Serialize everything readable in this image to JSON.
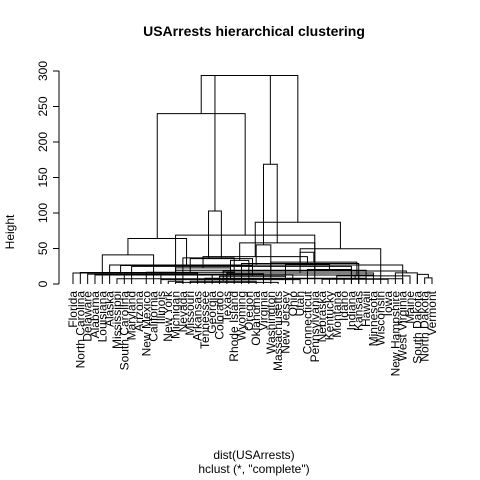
{
  "chart_data": {
    "type": "dendrogram",
    "title": "USArrests hierarchical clustering",
    "ylabel": "Height",
    "xlabel": "dist(USArrests)",
    "sublabel": "hclust (*, \"complete\")",
    "ylim": [
      0,
      300
    ],
    "yticks": [
      0,
      50,
      100,
      150,
      200,
      250,
      300
    ],
    "labels": [
      "Florida",
      "North Carolina",
      "Delaware",
      "Alabama",
      "Louisiana",
      "Alaska",
      "Mississippi",
      "South Carolina",
      "Maryland",
      "Arizona",
      "New Mexico",
      "California",
      "Illinois",
      "New York",
      "Michigan",
      "Nevada",
      "Missouri",
      "Arkansas",
      "Tennessee",
      "Georgia",
      "Colorado",
      "Texas",
      "Rhode Island",
      "Wyoming",
      "Oregon",
      "Oklahoma",
      "Virginia",
      "Washington",
      "Massachusetts",
      "New Jersey",
      "Ohio",
      "Utah",
      "Connecticut",
      "Pennsylvania",
      "Nebraska",
      "Kentucky",
      "Montana",
      "Idaho",
      "Indiana",
      "Kansas",
      "Hawaii",
      "Minnesota",
      "Wisconsin",
      "Iowa",
      "New Hampshire",
      "West Virginia",
      "Maine",
      "South Dakota",
      "North Dakota",
      "Vermont"
    ],
    "merges": [
      [
        -15,
        -29,
        2.29
      ],
      [
        -17,
        -26,
        3.83
      ],
      [
        -14,
        -16,
        3.93
      ],
      [
        -13,
        -32,
        6.24
      ],
      [
        -35,
        -44,
        6.64
      ],
      [
        -36,
        -46,
        7.36
      ],
      [
        -7,
        -38,
        7.36
      ],
      [
        -19,
        -41,
        8.03
      ],
      [
        -49,
        -50,
        8.54
      ],
      [
        -21,
        -30,
        10.86
      ],
      [
        -37,
        -47,
        11.46
      ],
      [
        -40,
        5,
        12.42
      ],
      [
        -4,
        -42,
        12.61
      ],
      [
        -20,
        -31,
        13.04
      ],
      [
        -8,
        -22,
        13.3
      ],
      [
        -48,
        9,
        13.49
      ],
      [
        -3,
        -27,
        13.89
      ],
      [
        -1,
        -18,
        15.41
      ],
      [
        1,
        11,
        15.45
      ],
      [
        -45,
        -48,
        15.63
      ],
      [
        -2,
        -13,
        16.24
      ],
      [
        -11,
        -23,
        16.57
      ],
      [
        2,
        20,
        18.32
      ],
      [
        6,
        15,
        19.44
      ],
      [
        -33,
        -39,
        20.36
      ],
      [
        3,
        4,
        22.73
      ],
      [
        -9,
        -39,
        24.89
      ],
      [
        14,
        21,
        26.07
      ],
      [
        -6,
        -46,
        26.7
      ],
      [
        8,
        25,
        28.07
      ],
      [
        -24,
        -40,
        28.95
      ],
      [
        12,
        24,
        30.82
      ],
      [
        7,
        -25,
        33.21
      ],
      [
        10,
        22,
        35.8
      ],
      [
        -16,
        13,
        36.73
      ],
      [
        26,
        30,
        38.53
      ],
      [
        -5,
        -12,
        40.95
      ],
      [
        31,
        32,
        44.79
      ],
      [
        -43,
        19,
        49.67
      ],
      [
        29,
        -28,
        55.15
      ],
      [
        33,
        -34,
        57.99
      ],
      [
        28,
        37,
        64.12
      ],
      [
        17,
        23,
        68.88
      ],
      [
        39,
        36,
        86.97
      ],
      [
        34,
        35,
        102.86
      ],
      [
        40,
        41,
        168.61
      ],
      [
        42,
        43,
        240.0
      ],
      [
        44,
        45,
        293.62
      ],
      [
        46,
        47,
        293.62
      ]
    ]
  }
}
